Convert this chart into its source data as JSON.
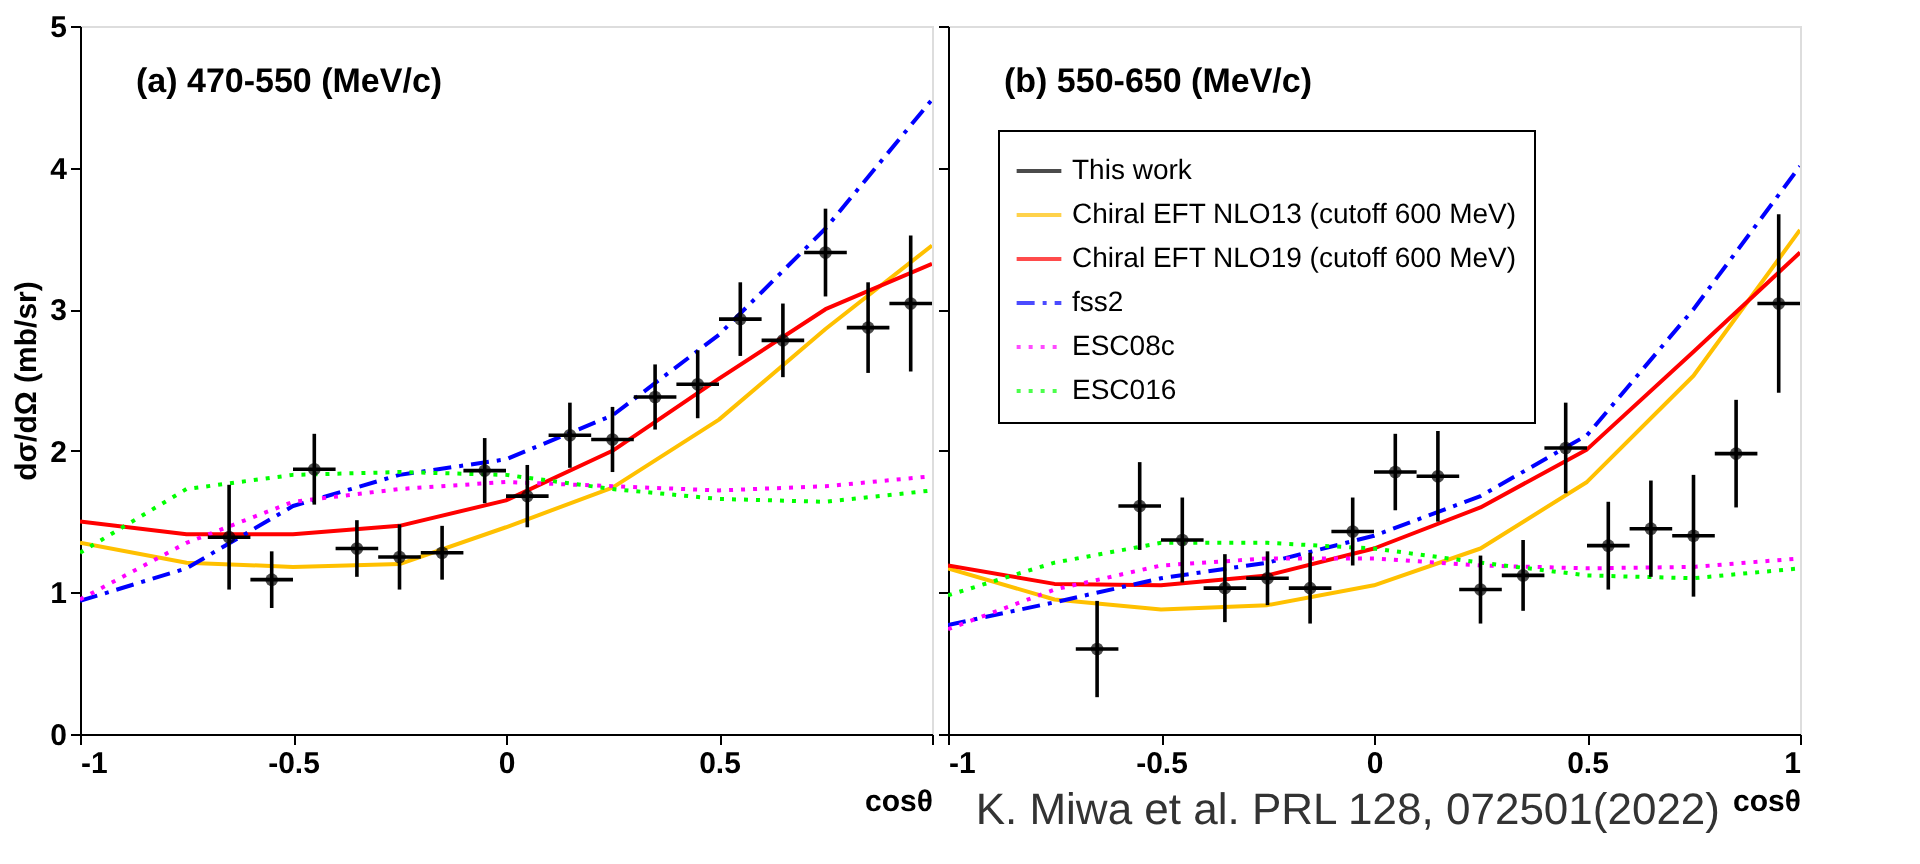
{
  "chart_data": [
    {
      "type": "scatter",
      "title": "(a)  470-550 (MeV/c)",
      "xlabel": "cosθ",
      "ylabel": "dσ/dΩ (mb/sr)",
      "xlim": [
        -1,
        1
      ],
      "ylim": [
        0,
        5
      ],
      "xticks": [
        -1,
        -0.5,
        0,
        0.5,
        {
          "value": 1,
          "label": null
        }
      ],
      "yticks": [
        0,
        1,
        2,
        3,
        4,
        5
      ],
      "series": [
        {
          "marker": "circle",
          "color": "#000000",
          "x": [
            -0.65,
            -0.55,
            -0.45,
            -0.35,
            -0.25,
            -0.15,
            -0.05,
            0.05,
            0.15,
            0.25,
            0.35,
            0.45,
            0.55,
            0.65,
            0.75,
            0.85,
            0.95
          ],
          "values": [
            1.39,
            1.09,
            1.87,
            1.31,
            1.25,
            1.28,
            1.86,
            1.68,
            2.11,
            2.08,
            2.38,
            2.47,
            2.93,
            2.78,
            3.4,
            2.87,
            3.04
          ],
          "errors": [
            0.37,
            0.2,
            0.25,
            0.2,
            0.23,
            0.19,
            0.23,
            0.22,
            0.23,
            0.23,
            0.23,
            0.24,
            0.26,
            0.26,
            0.31,
            0.32,
            0.48
          ],
          "xerrors": [
            0.05,
            0.05,
            0.05,
            0.05,
            0.05,
            0.05,
            0.05,
            0.05,
            0.05,
            0.05,
            0.05,
            0.05,
            0.05,
            0.05,
            0.05,
            0.05,
            0.05
          ]
        },
        {
          "type": "line",
          "line_style": "solid",
          "color": "#ffc000",
          "x": [
            -1,
            -0.75,
            -0.5,
            -0.25,
            0,
            0.25,
            0.5,
            0.75,
            1
          ],
          "values": [
            1.35,
            1.21,
            1.18,
            1.2,
            1.46,
            1.74,
            2.22,
            2.86,
            3.45
          ]
        },
        {
          "type": "line",
          "line_style": "solid",
          "color": "#ff0000",
          "x": [
            -1,
            -0.75,
            -0.5,
            -0.25,
            0,
            0.25,
            0.5,
            0.75,
            1
          ],
          "values": [
            1.5,
            1.41,
            1.41,
            1.47,
            1.65,
            2.0,
            2.51,
            3.0,
            3.32
          ]
        },
        {
          "type": "line",
          "line_style": "dashed",
          "color": "#0000ff",
          "x": [
            -1,
            -0.75,
            -0.5,
            -0.25,
            0,
            0.25,
            0.5,
            0.75,
            1
          ],
          "values": [
            0.94,
            1.17,
            1.61,
            1.83,
            1.94,
            2.25,
            2.82,
            3.57,
            4.48
          ]
        },
        {
          "type": "line",
          "line_style": "dotted",
          "color": "#ff00ff",
          "x": [
            -1,
            -0.75,
            -0.5,
            -0.25,
            0,
            0.25,
            0.5,
            0.75,
            1
          ],
          "values": [
            0.95,
            1.35,
            1.64,
            1.73,
            1.78,
            1.75,
            1.72,
            1.75,
            1.82
          ]
        },
        {
          "type": "line",
          "line_style": "dotted",
          "color": "#00ff00",
          "x": [
            -1,
            -0.75,
            -0.5,
            -0.25,
            0,
            0.25,
            0.5,
            0.75,
            1
          ],
          "values": [
            1.28,
            1.73,
            1.83,
            1.85,
            1.83,
            1.73,
            1.66,
            1.64,
            1.72
          ]
        }
      ]
    },
    {
      "type": "scatter",
      "title": "(b)  550-650 (MeV/c)",
      "xlabel": "cosθ",
      "xlim": [
        -1,
        1
      ],
      "ylim": [
        0,
        5
      ],
      "xticks": [
        -1,
        -0.5,
        0,
        0.5,
        1
      ],
      "yticks": [
        0,
        1,
        2,
        3,
        4,
        5
      ],
      "tick_labels": "x",
      "legend": "top left",
      "annotations": [
        "K. Miwa et al. PRL 128, 072501(2022)"
      ],
      "series": [
        {
          "name": "This work",
          "marker": "circle",
          "color": "#000000",
          "x": [
            -0.65,
            -0.55,
            -0.45,
            -0.35,
            -0.25,
            -0.15,
            -0.05,
            0.05,
            0.15,
            0.25,
            0.35,
            0.45,
            0.55,
            0.65,
            0.75,
            0.85,
            0.95
          ],
          "values": [
            0.6,
            1.61,
            1.37,
            1.03,
            1.1,
            1.03,
            1.43,
            1.85,
            1.82,
            1.02,
            1.12,
            2.02,
            1.33,
            1.45,
            1.4,
            1.98,
            3.04
          ],
          "errors": [
            0.34,
            0.31,
            0.3,
            0.24,
            0.19,
            0.25,
            0.24,
            0.27,
            0.32,
            0.24,
            0.25,
            0.32,
            0.31,
            0.34,
            0.43,
            0.38,
            0.63
          ],
          "xerrors": [
            0.05,
            0.05,
            0.05,
            0.05,
            0.05,
            0.05,
            0.05,
            0.05,
            0.05,
            0.05,
            0.05,
            0.05,
            0.05,
            0.05,
            0.05,
            0.05,
            0.05
          ]
        },
        {
          "name": "Chiral EFT NLO13 (cutoff 600 MeV)",
          "type": "line",
          "line_style": "solid",
          "color": "#ffc000",
          "x": [
            -1,
            -0.75,
            -0.5,
            -0.25,
            0,
            0.25,
            0.5,
            0.75,
            1
          ],
          "values": [
            1.17,
            0.95,
            0.88,
            0.91,
            1.05,
            1.31,
            1.78,
            2.53,
            3.56
          ]
        },
        {
          "name": "Chiral EFT NLO19 (cutoff 600 MeV)",
          "type": "line",
          "line_style": "solid",
          "color": "#ff0000",
          "x": [
            -1,
            -0.75,
            -0.5,
            -0.25,
            0,
            0.25,
            0.5,
            0.75,
            1
          ],
          "values": [
            1.19,
            1.06,
            1.05,
            1.12,
            1.31,
            1.6,
            2.01,
            2.7,
            3.4
          ]
        },
        {
          "name": "fss2",
          "type": "line",
          "line_style": "dashed",
          "color": "#0000ff",
          "x": [
            -1,
            -0.75,
            -0.5,
            -0.25,
            0,
            0.25,
            0.5,
            0.75,
            1
          ],
          "values": [
            0.77,
            0.93,
            1.1,
            1.21,
            1.4,
            1.68,
            2.11,
            3.0,
            4.01
          ]
        },
        {
          "name": "ESC08c",
          "type": "line",
          "line_style": "dotted",
          "color": "#ff00ff",
          "x": [
            -1,
            -0.75,
            -0.5,
            -0.25,
            0,
            0.25,
            0.5,
            0.75,
            1
          ],
          "values": [
            0.74,
            1.02,
            1.19,
            1.24,
            1.24,
            1.19,
            1.17,
            1.18,
            1.24
          ]
        },
        {
          "name": "ESC016",
          "type": "line",
          "line_style": "dotted",
          "color": "#00ff00",
          "x": [
            -1,
            -0.75,
            -0.5,
            -0.25,
            0,
            0.25,
            0.5,
            0.75,
            1
          ],
          "values": [
            0.98,
            1.21,
            1.35,
            1.35,
            1.31,
            1.21,
            1.12,
            1.1,
            1.17
          ]
        }
      ]
    }
  ]
}
